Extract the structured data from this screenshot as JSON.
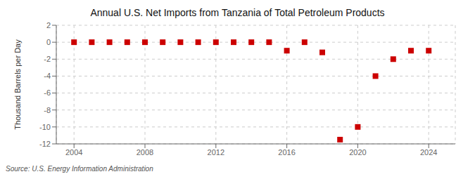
{
  "chart_data": {
    "type": "scatter",
    "title": "Annual U.S. Net Imports from Tanzania of Total Petroleum Products",
    "ylabel": "Thousand Barrels per Day",
    "annotations": [
      "Source: U.S. Energy Information Administration"
    ],
    "x": [
      2004,
      2005,
      2006,
      2007,
      2008,
      2009,
      2010,
      2011,
      2012,
      2013,
      2014,
      2015,
      2016,
      2017,
      2018,
      2019,
      2020,
      2021,
      2022,
      2023,
      2024
    ],
    "values": [
      0,
      0,
      0,
      0,
      0,
      0,
      0,
      0,
      0,
      0,
      0,
      0,
      -1.0,
      0,
      -1.2,
      -11.5,
      -10.0,
      -4.0,
      -2.0,
      -1.0,
      -1.0
    ],
    "xlim": [
      2003.0,
      2025.5
    ],
    "xticks": [
      2004,
      2008,
      2012,
      2016,
      2020,
      2024
    ],
    "ylim": [
      -12,
      2
    ],
    "yticks": [
      2,
      0,
      -2,
      -4,
      -6,
      -8,
      -10,
      -12
    ],
    "color": "#cc0000",
    "marker": "square",
    "grid": true
  }
}
